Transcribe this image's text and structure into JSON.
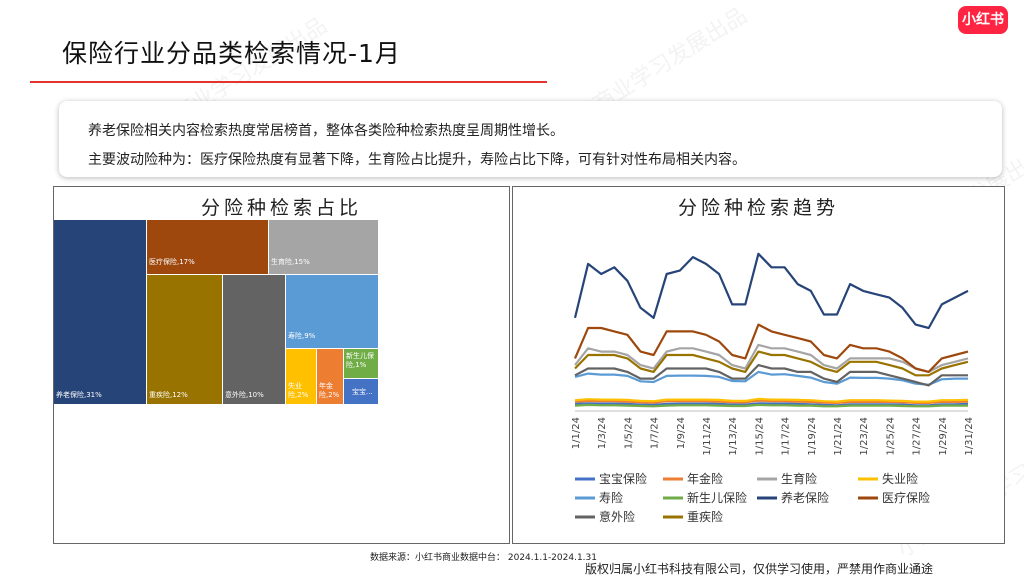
{
  "page": {
    "title": "保险行业分品类检索情况-1月",
    "logo_text": "小红书",
    "accent_color": "#e3342f",
    "summary_line1": "养老保险相关内容检索热度常居榜首，整体各类险种检索热度呈周期性增长。",
    "summary_line2": "主要波动险种为：医疗保险热度有显著下降，生育险占比提升，寿险占比下降，可有针对性布局相关内容。",
    "source_note": "数据来源：小红书商业数据中台：  2024.1.1-2024.1.31",
    "copyright": "版权归属小红书科技有限公司，仅供学习使用，严禁用作商业通途",
    "watermark": "小红书商业学习发展出品"
  },
  "chart_data": [
    {
      "type": "treemap",
      "title": "分险种检索占比",
      "items": [
        {
          "name": "养老保险",
          "label": "养老保险,31%",
          "value": 31,
          "color": "#264478"
        },
        {
          "name": "医疗保险",
          "label": "医疗保险,17%",
          "value": 17,
          "color": "#9e480e"
        },
        {
          "name": "生育险",
          "label": "生育险,15%",
          "value": 15,
          "color": "#a5a5a5"
        },
        {
          "name": "重疾险",
          "label": "重疾险,12%",
          "value": 12,
          "color": "#997300"
        },
        {
          "name": "意外险",
          "label": "意外险,10%",
          "value": 10,
          "color": "#636363"
        },
        {
          "name": "寿险",
          "label": "寿险,9%",
          "value": 9,
          "color": "#5b9bd5"
        },
        {
          "name": "失业险",
          "label": "失业险,2%",
          "value": 2,
          "color": "#ffc000"
        },
        {
          "name": "年金险",
          "label": "年金险,2%",
          "value": 2,
          "color": "#ed7d31"
        },
        {
          "name": "新生儿保险",
          "label": "新生儿保险,1%",
          "value": 1,
          "color": "#70ad47"
        },
        {
          "name": "宝宝保险",
          "label": "宝宝...",
          "value": 1,
          "color": "#4472c4"
        }
      ]
    },
    {
      "type": "line",
      "title": "分险种检索趋势",
      "x": [
        "1/1/24",
        "1/2/24",
        "1/3/24",
        "1/4/24",
        "1/5/24",
        "1/6/24",
        "1/7/24",
        "1/8/24",
        "1/9/24",
        "1/10/24",
        "1/11/24",
        "1/12/24",
        "1/13/24",
        "1/14/24",
        "1/15/24",
        "1/16/24",
        "1/17/24",
        "1/18/24",
        "1/19/24",
        "1/20/24",
        "1/21/24",
        "1/22/24",
        "1/23/24",
        "1/24/24",
        "1/25/24",
        "1/26/24",
        "1/27/24",
        "1/28/24",
        "1/29/24",
        "1/30/24",
        "1/31/24"
      ],
      "x_tick_labels": [
        "1/1/24",
        "1/3/24",
        "1/5/24",
        "1/7/24",
        "1/9/24",
        "1/11/24",
        "1/13/24",
        "1/15/24",
        "1/17/24",
        "1/19/24",
        "1/21/24",
        "1/23/24",
        "1/25/24",
        "1/27/24",
        "1/29/24",
        "1/31/24"
      ],
      "y_axis_visible": false,
      "gridlines": false,
      "legend_position": "bottom",
      "series": [
        {
          "name": "宝宝保险",
          "color": "#4472c4",
          "values": [
            1.5,
            1.7,
            1.6,
            1.6,
            1.5,
            1.3,
            1.2,
            1.5,
            1.6,
            1.6,
            1.6,
            1.5,
            1.3,
            1.3,
            1.7,
            1.6,
            1.6,
            1.5,
            1.4,
            1.2,
            1.1,
            1.4,
            1.4,
            1.4,
            1.4,
            1.3,
            1.1,
            1.1,
            1.4,
            1.4,
            1.5
          ]
        },
        {
          "name": "年金险",
          "color": "#ed7d31",
          "values": [
            2.2,
            2.4,
            2.3,
            2.3,
            2.2,
            2.0,
            1.9,
            2.3,
            2.3,
            2.3,
            2.3,
            2.2,
            2.0,
            2.0,
            2.5,
            2.3,
            2.3,
            2.2,
            2.1,
            1.9,
            1.8,
            2.1,
            2.1,
            2.1,
            2.1,
            2.0,
            1.8,
            1.8,
            2.1,
            2.1,
            2.2
          ]
        },
        {
          "name": "生育险",
          "color": "#a5a5a5",
          "values": [
            13,
            18,
            17,
            17,
            16,
            13,
            12,
            17,
            18,
            18,
            17,
            16,
            13,
            12,
            19,
            18,
            18,
            17,
            16,
            13,
            12,
            15,
            15,
            15,
            15,
            14,
            12,
            11,
            13,
            14,
            15
          ]
        },
        {
          "name": "失业险",
          "color": "#ffc000",
          "values": [
            2.6,
            2.9,
            2.8,
            2.8,
            2.7,
            2.4,
            2.3,
            2.8,
            2.8,
            2.8,
            2.8,
            2.7,
            2.4,
            2.4,
            3.0,
            2.8,
            2.8,
            2.7,
            2.6,
            2.3,
            2.2,
            2.6,
            2.6,
            2.6,
            2.5,
            2.4,
            2.2,
            2.2,
            2.6,
            2.6,
            2.7
          ]
        },
        {
          "name": "寿险",
          "color": "#5b9bd5",
          "values": [
            9.5,
            10.5,
            10.2,
            10.2,
            9.8,
            8.2,
            8.0,
            9.8,
            9.9,
            9.9,
            9.8,
            9.5,
            8.3,
            8.2,
            11.0,
            10.2,
            10.3,
            9.8,
            9.3,
            8.0,
            7.5,
            9.3,
            9.2,
            9.2,
            9.0,
            8.5,
            7.5,
            7.2,
            8.8,
            9.0,
            9.0
          ]
        },
        {
          "name": "新生儿保险",
          "color": "#70ad47",
          "values": [
            1.0,
            1.2,
            1.1,
            1.1,
            1.0,
            0.9,
            0.8,
            1.0,
            1.1,
            1.1,
            1.1,
            1.0,
            0.9,
            0.9,
            1.2,
            1.1,
            1.1,
            1.0,
            1.0,
            0.8,
            0.8,
            1.0,
            1.0,
            1.0,
            1.0,
            0.9,
            0.8,
            0.8,
            1.0,
            1.0,
            1.0
          ]
        },
        {
          "name": "养老保险",
          "color": "#264478",
          "values": [
            27,
            43,
            40,
            42,
            38,
            30,
            27,
            40,
            41,
            45,
            43,
            40,
            31,
            31,
            46,
            42,
            42,
            37,
            35,
            28,
            28,
            37,
            35,
            34,
            33,
            30,
            25,
            24,
            31,
            33,
            35
          ]
        },
        {
          "name": "医疗保险",
          "color": "#9e480e",
          "values": [
            15,
            24,
            24,
            23,
            22,
            17,
            16,
            23,
            23,
            23,
            22,
            20,
            16,
            15,
            25,
            23,
            22,
            21,
            20,
            16,
            15,
            19,
            18,
            18,
            17,
            15,
            12,
            11,
            15,
            16,
            17
          ]
        },
        {
          "name": "意外险",
          "color": "#636363",
          "values": [
            10,
            12,
            12,
            12,
            11,
            9,
            9,
            12,
            12,
            12,
            12,
            11,
            9,
            9,
            13,
            12,
            12,
            11,
            11,
            9,
            8,
            11,
            11,
            11,
            10,
            9,
            8,
            7,
            10,
            10,
            10
          ]
        },
        {
          "name": "重疾险",
          "color": "#997300",
          "values": [
            12,
            16,
            16,
            16,
            15,
            12,
            11,
            16,
            16,
            16,
            15,
            14,
            12,
            11,
            17,
            16,
            16,
            15,
            14,
            12,
            11,
            14,
            14,
            14,
            13,
            12,
            10,
            10,
            12,
            13,
            14
          ]
        }
      ]
    }
  ]
}
